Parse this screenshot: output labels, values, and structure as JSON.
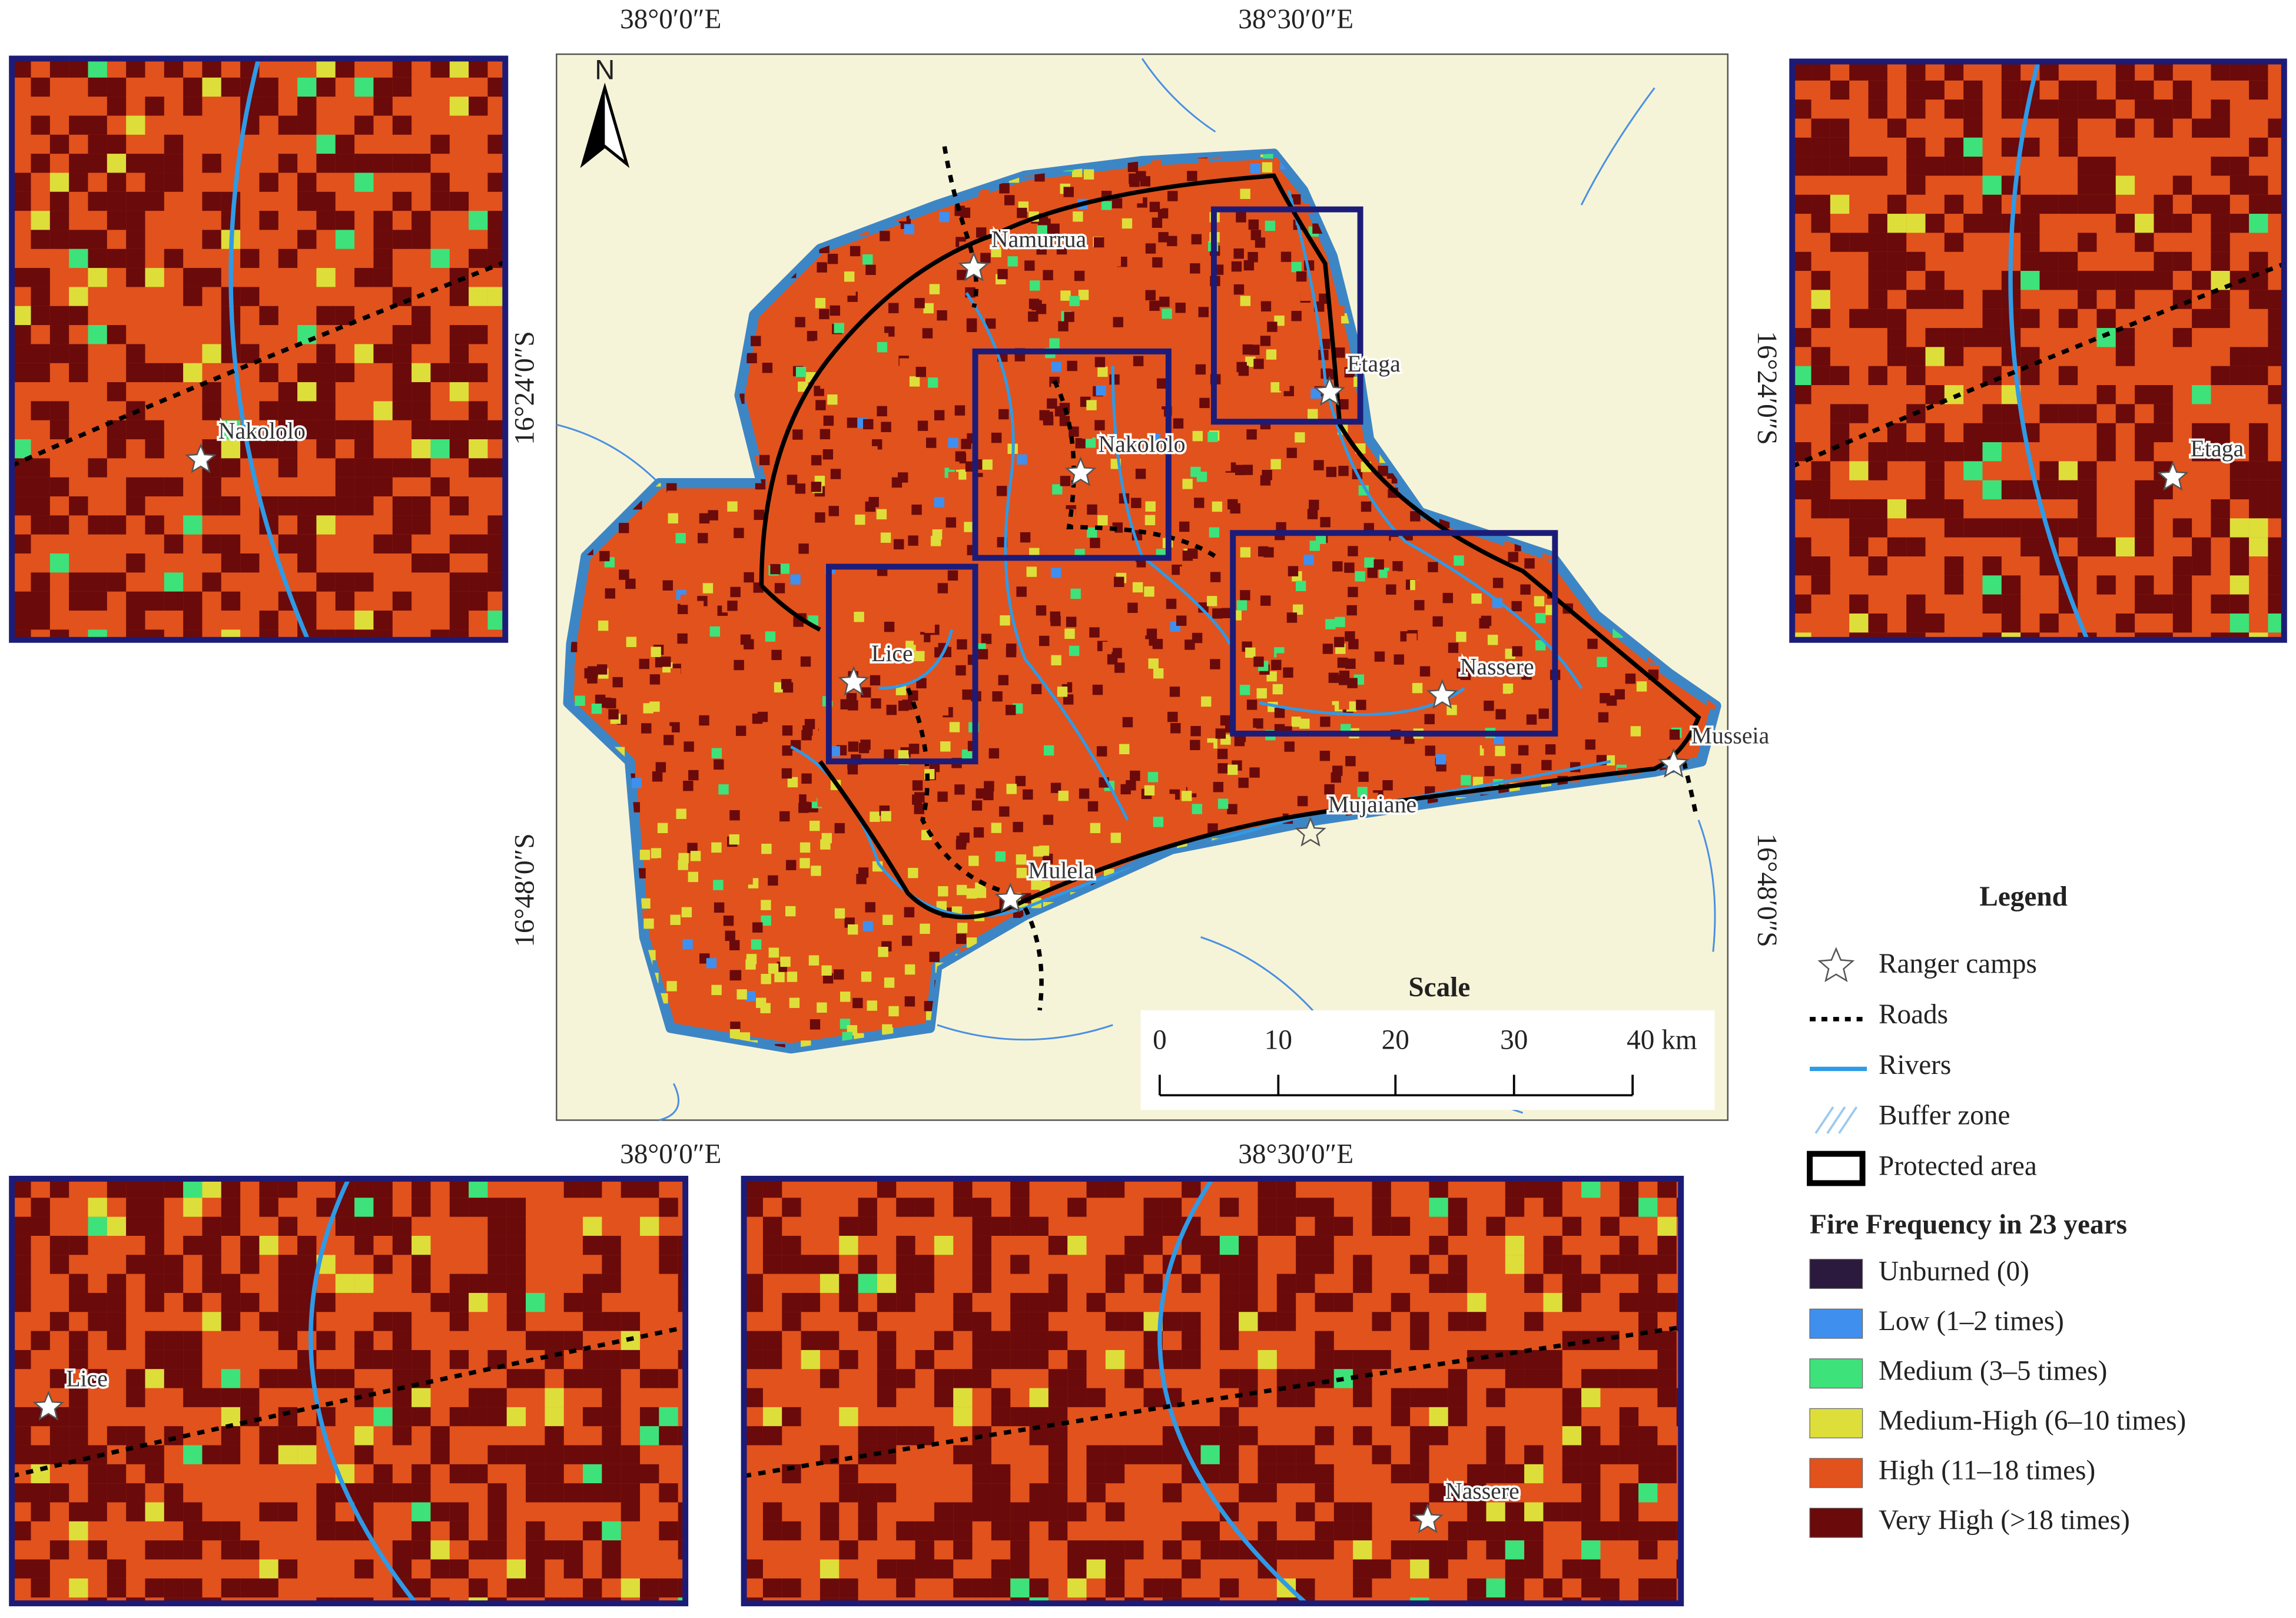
{
  "map": {
    "coordinates": {
      "top": [
        "38°0′0″E",
        "38°30′0″E"
      ],
      "bottom": [
        "38°0′0″E",
        "38°30′0″E"
      ],
      "left": [
        "16°24′0″S",
        "16°48′0″S"
      ],
      "right": [
        "16°24′0″S",
        "16°48′0″S"
      ]
    },
    "north": "N",
    "places": [
      "Namurrua",
      "Etaga",
      "Nakololo",
      "Lice",
      "Nassere",
      "Musseia",
      "Mujaiane",
      "Mulela"
    ],
    "scale": {
      "title": "Scale",
      "labels": [
        "0",
        "10",
        "20",
        "30",
        "40 km"
      ]
    },
    "insets": {
      "top_left": "Nakololo",
      "top_right": "Etaga",
      "bottom_left": "Lice",
      "bottom_right": "Nassere"
    },
    "legend": {
      "title": "Legend",
      "items": [
        "Ranger camps",
        "Roads",
        "Rivers",
        "Buffer zone",
        "Protected area"
      ],
      "fire_title": "Fire Frequency in 23 years",
      "classes": [
        {
          "label": "Unburned (0)",
          "color": "#2b1a3d"
        },
        {
          "label": "Low (1–2 times)",
          "color": "#3f8fef"
        },
        {
          "label": "Medium (3–5 times)",
          "color": "#3ee27a"
        },
        {
          "label": "Medium-High (6–10 times)",
          "color": "#dede3a"
        },
        {
          "label": "High (11–18 times)",
          "color": "#e2521c"
        },
        {
          "label": "Very High (>18 times)",
          "color": "#6a0a0a"
        }
      ]
    }
  }
}
